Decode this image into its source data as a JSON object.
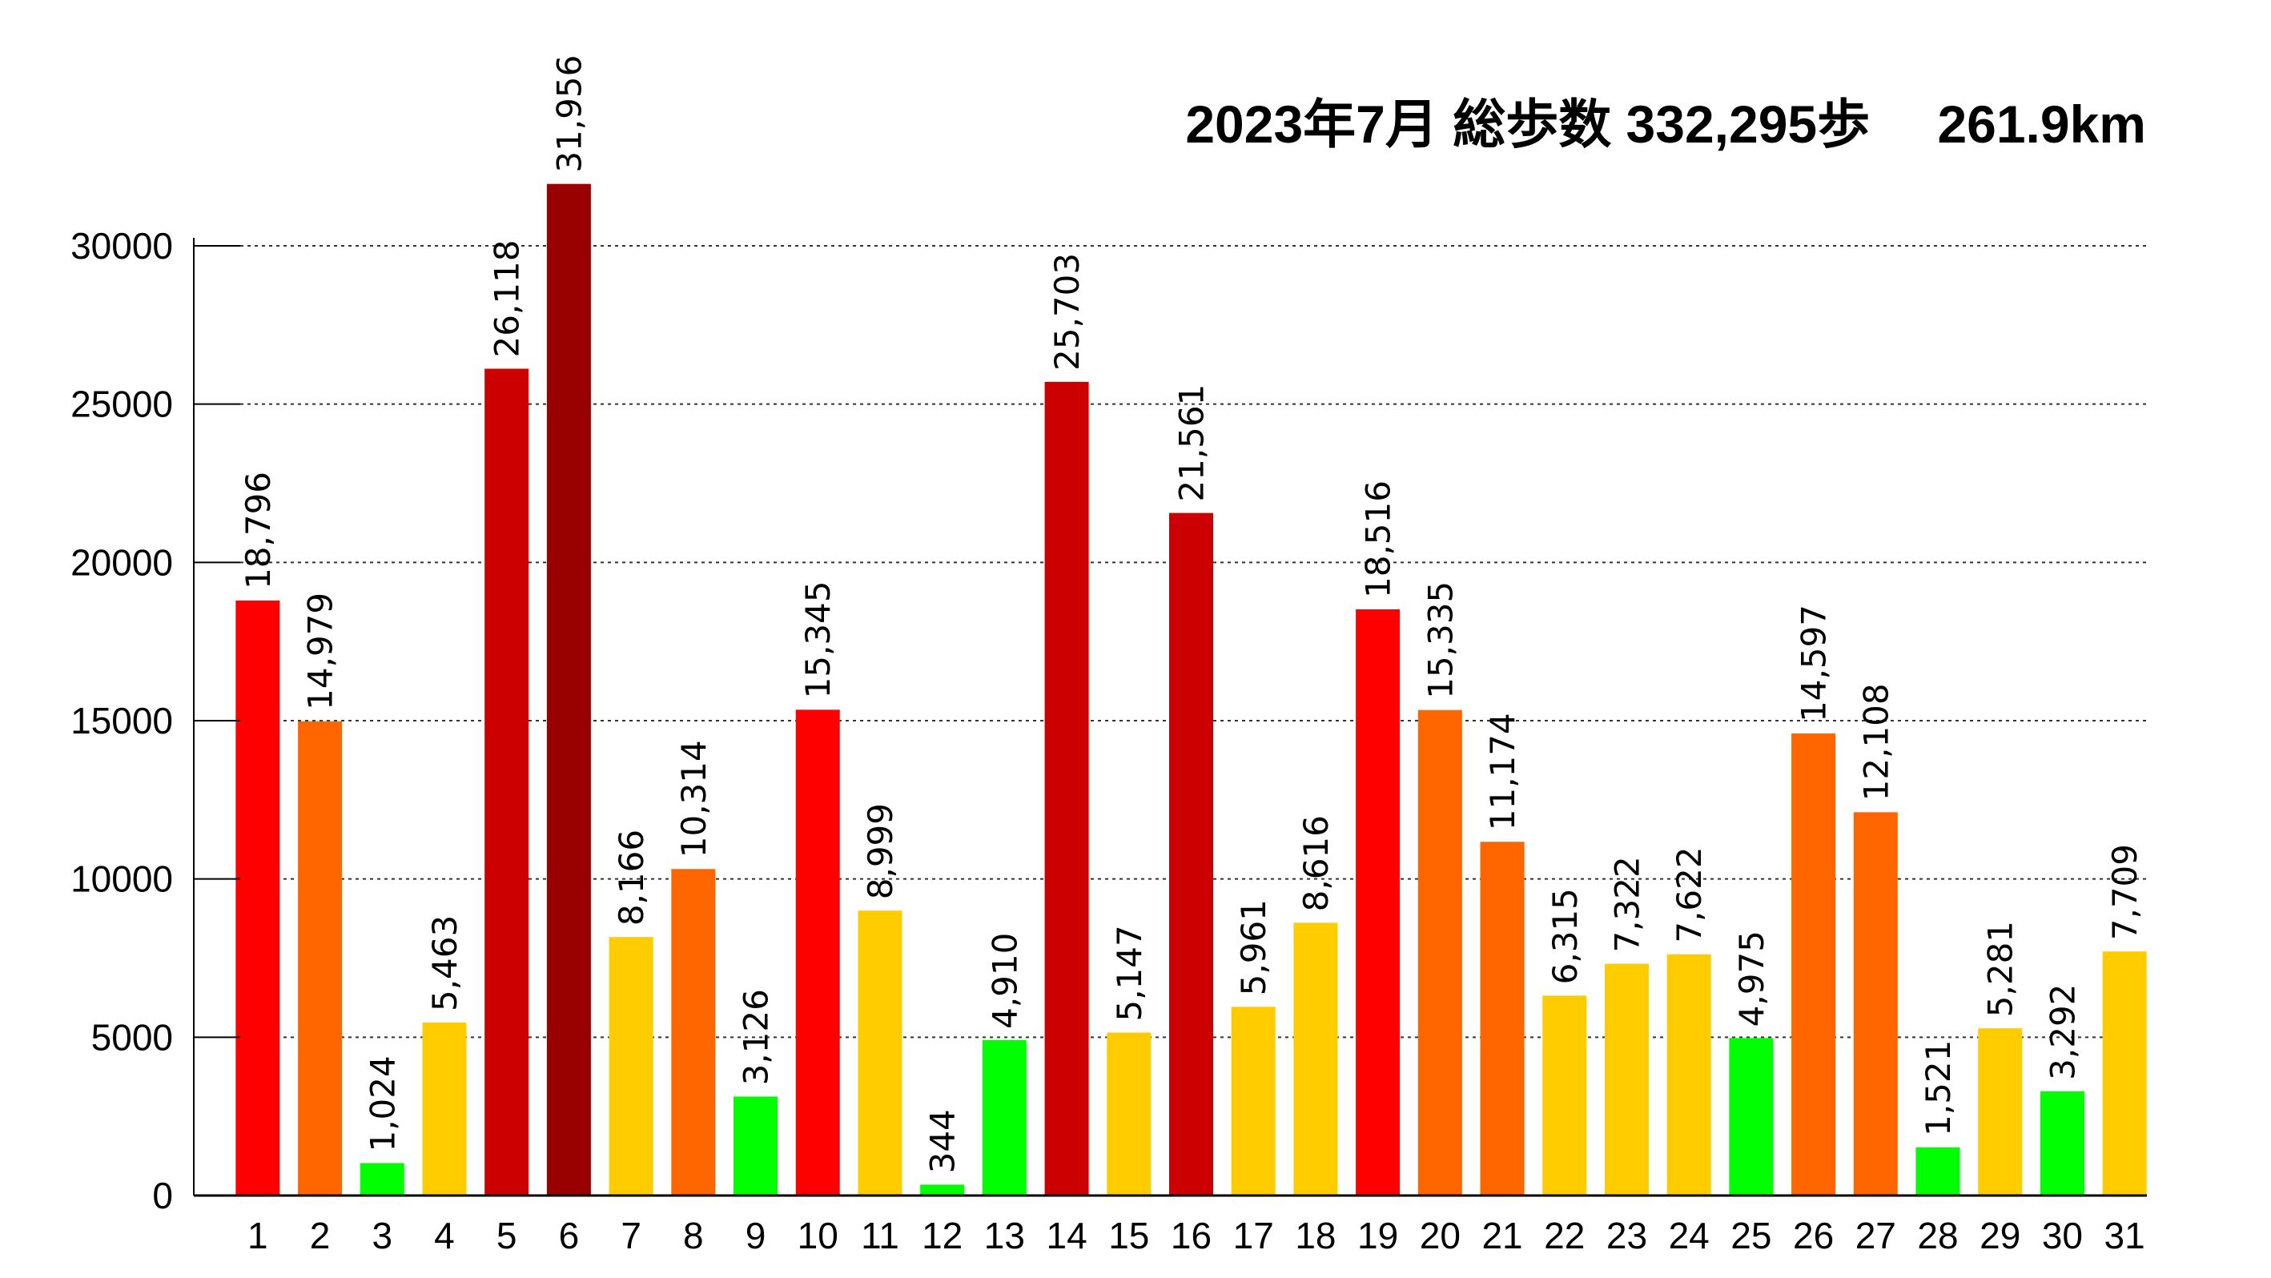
{
  "chart_data": {
    "type": "bar",
    "title": "2023年7月 総歩数 332,295歩　 261.9km",
    "xlabel": "",
    "ylabel": "",
    "ylim": [
      0,
      32000
    ],
    "yticks": [
      0,
      5000,
      10000,
      15000,
      20000,
      25000,
      30000
    ],
    "grid": true,
    "categories": [
      "1",
      "2",
      "3",
      "4",
      "5",
      "6",
      "7",
      "8",
      "9",
      "10",
      "11",
      "12",
      "13",
      "14",
      "15",
      "16",
      "17",
      "18",
      "19",
      "20",
      "21",
      "22",
      "23",
      "24",
      "25",
      "26",
      "27",
      "28",
      "29",
      "30",
      "31"
    ],
    "values": [
      18796,
      14979,
      1024,
      5463,
      26118,
      31956,
      8166,
      10314,
      3126,
      15345,
      8999,
      344,
      4910,
      25703,
      5147,
      21561,
      5961,
      8616,
      18516,
      15335,
      11174,
      6315,
      7322,
      7622,
      4975,
      14597,
      12108,
      1521,
      5281,
      3292,
      7709
    ],
    "value_labels": [
      "18,796",
      "14,979",
      "1,024",
      "5,463",
      "26,118",
      "31,956",
      "8,166",
      "10,314",
      "3,126",
      "15,345",
      "8,999",
      "344",
      "4,910",
      "25,703",
      "5,147",
      "21,561",
      "5,961",
      "8,616",
      "18,516",
      "15,335",
      "11,174",
      "6,315",
      "7,322",
      "7,622",
      "4,975",
      "14,597",
      "12,108",
      "1,521",
      "5,281",
      "3,292",
      "7,709"
    ],
    "bar_colors": [
      "#ff0000",
      "#ff6600",
      "#00ff00",
      "#ffcc00",
      "#cc0000",
      "#990000",
      "#ffcc00",
      "#ff6600",
      "#00ff00",
      "#ff0000",
      "#ffcc00",
      "#00ff00",
      "#00ff00",
      "#cc0000",
      "#ffcc00",
      "#cc0000",
      "#ffcc00",
      "#ffcc00",
      "#ff0000",
      "#ff6600",
      "#ff6600",
      "#ffcc00",
      "#ffcc00",
      "#ffcc00",
      "#00ff00",
      "#ff6600",
      "#ff6600",
      "#00ff00",
      "#ffcc00",
      "#00ff00",
      "#ffcc00"
    ]
  }
}
